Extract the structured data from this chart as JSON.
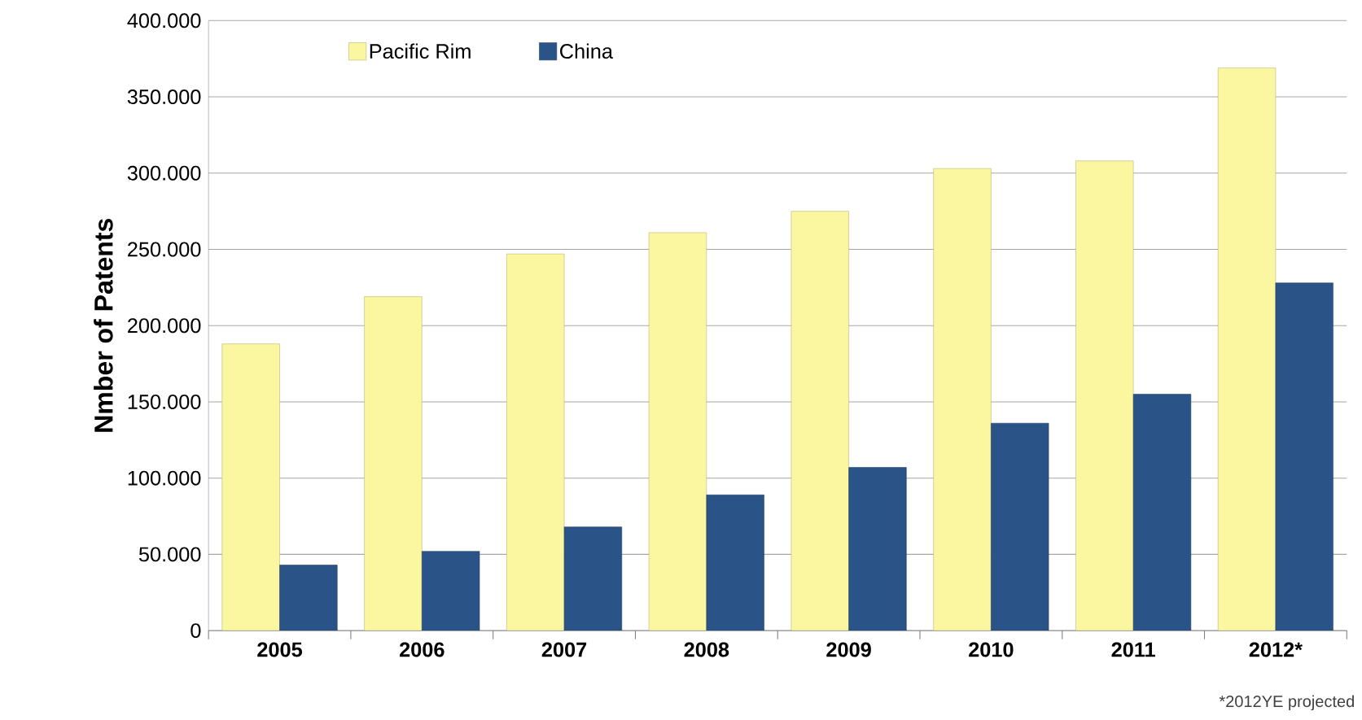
{
  "chart_data": {
    "type": "bar",
    "ylabel": "Nmber of Patents",
    "categories": [
      "2005",
      "2006",
      "2007",
      "2008",
      "2009",
      "2010",
      "2011",
      "2012*"
    ],
    "series": [
      {
        "name": "Pacific Rim",
        "color": "#faf7a0",
        "values": [
          188000,
          219000,
          247000,
          261000,
          275000,
          303000,
          308000,
          369000
        ]
      },
      {
        "name": "China",
        "color": "#2a5487",
        "values": [
          43000,
          52000,
          68000,
          89000,
          107000,
          136000,
          155000,
          228000
        ]
      }
    ],
    "ylim": [
      0,
      400000
    ],
    "yticks": [
      0,
      {
        "value": 50000,
        "label": "50.000"
      },
      {
        "value": 100000,
        "label": "100.000"
      },
      {
        "value": 150000,
        "label": "150.000"
      },
      {
        "value": 200000,
        "label": "200.000"
      },
      {
        "value": 250000,
        "label": "250.000"
      },
      {
        "value": 300000,
        "label": "300.000"
      },
      {
        "value": 350000,
        "label": "350.000"
      },
      {
        "value": 400000,
        "label": "400.000"
      }
    ],
    "grid": "y",
    "legend": "top",
    "annotations": [
      "*2012YE projected"
    ]
  }
}
